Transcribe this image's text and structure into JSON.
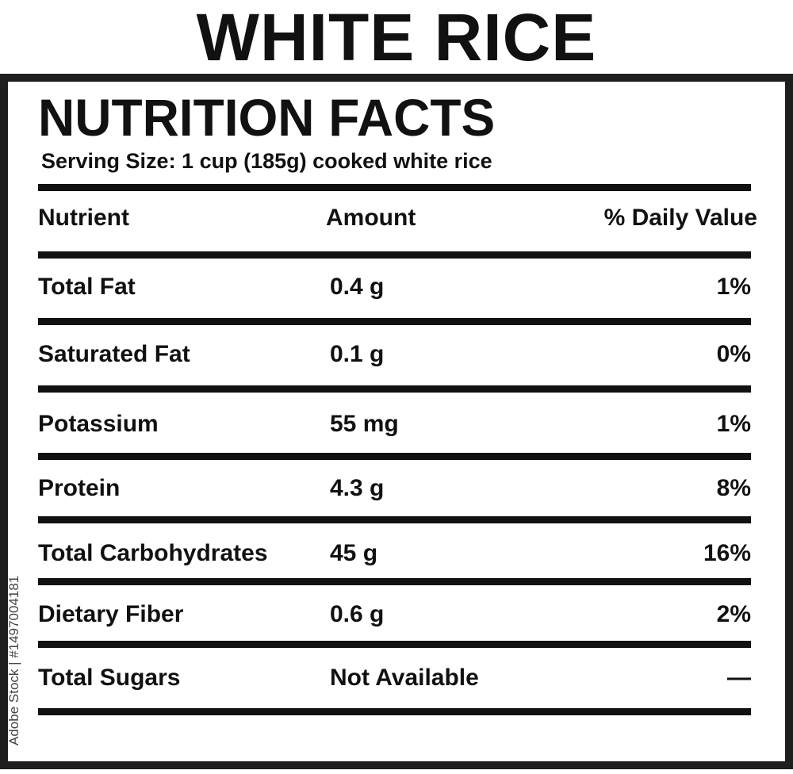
{
  "title": "WHITE RICE",
  "label": {
    "heading": "NUTRITION FACTS",
    "serving_size": "Serving Size: 1 cup (185g) cooked white rice",
    "columns": {
      "nutrient": "Nutrient",
      "amount": "Amount",
      "daily_value": "% Daily Value"
    },
    "rows": [
      {
        "nutrient": "Total Fat",
        "amount": "0.4 g",
        "daily_value": "1%"
      },
      {
        "nutrient": "Saturated Fat",
        "amount": "0.1 g",
        "daily_value": "0%"
      },
      {
        "nutrient": "Potassium",
        "amount": "55 mg",
        "daily_value": "1%"
      },
      {
        "nutrient": "Protein",
        "amount": "4.3 g",
        "daily_value": "8%"
      },
      {
        "nutrient": "Total Carbohydrates",
        "amount": "45 g",
        "daily_value": "16%"
      },
      {
        "nutrient": "Dietary Fiber",
        "amount": "0.6 g",
        "daily_value": "2%"
      },
      {
        "nutrient": "Total Sugars",
        "amount": "Not Available",
        "daily_value": "—"
      }
    ]
  },
  "watermark": "Adobe Stock | #1497004181",
  "colors": {
    "ink": "#111111",
    "border": "#1e1e1e",
    "background": "#ffffff"
  }
}
